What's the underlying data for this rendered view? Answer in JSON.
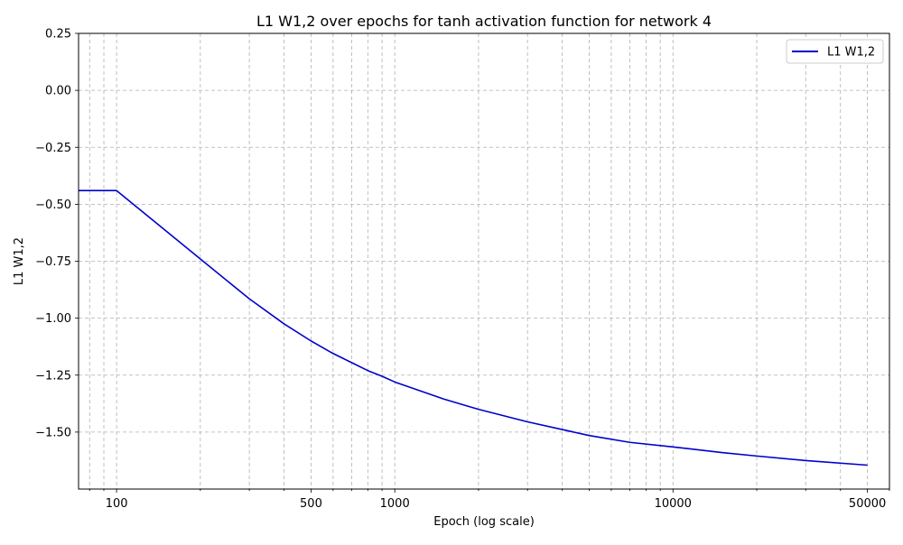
{
  "chart_data": {
    "type": "line",
    "title": "L1 W1,2 over epochs for tanh activation function for network 4",
    "xlabel": "Epoch (log scale)",
    "ylabel": "L1 W1,2",
    "x_scale": "log",
    "grid": true,
    "legend_position": "top-right",
    "xlim": [
      73,
      60000
    ],
    "ylim": [
      -1.75,
      0.25
    ],
    "x_ticks": [
      100,
      500,
      1000,
      10000,
      50000
    ],
    "x_tick_labels": [
      "100",
      "500",
      "1000",
      "10000",
      "50000"
    ],
    "y_ticks": [
      0.25,
      0.0,
      -0.25,
      -0.5,
      -0.75,
      -1.0,
      -1.25,
      -1.5
    ],
    "y_tick_labels": [
      "0.25",
      "0.00",
      "−0.25",
      "−0.50",
      "−0.75",
      "−1.00",
      "−1.25",
      "−1.50"
    ],
    "series": [
      {
        "name": "L1 W1,2",
        "color": "#0000cc",
        "x": [
          1,
          100,
          200,
          300,
          400,
          500,
          600,
          700,
          800,
          900,
          1000,
          1500,
          2000,
          3000,
          5000,
          7000,
          10000,
          15000,
          20000,
          30000,
          50000
        ],
        "y": [
          -0.44,
          -0.44,
          -0.74,
          -0.915,
          -1.025,
          -1.1,
          -1.155,
          -1.195,
          -1.23,
          -1.255,
          -1.28,
          -1.355,
          -1.4,
          -1.455,
          -1.515,
          -1.545,
          -1.565,
          -1.59,
          -1.605,
          -1.625,
          -1.645
        ]
      }
    ]
  }
}
